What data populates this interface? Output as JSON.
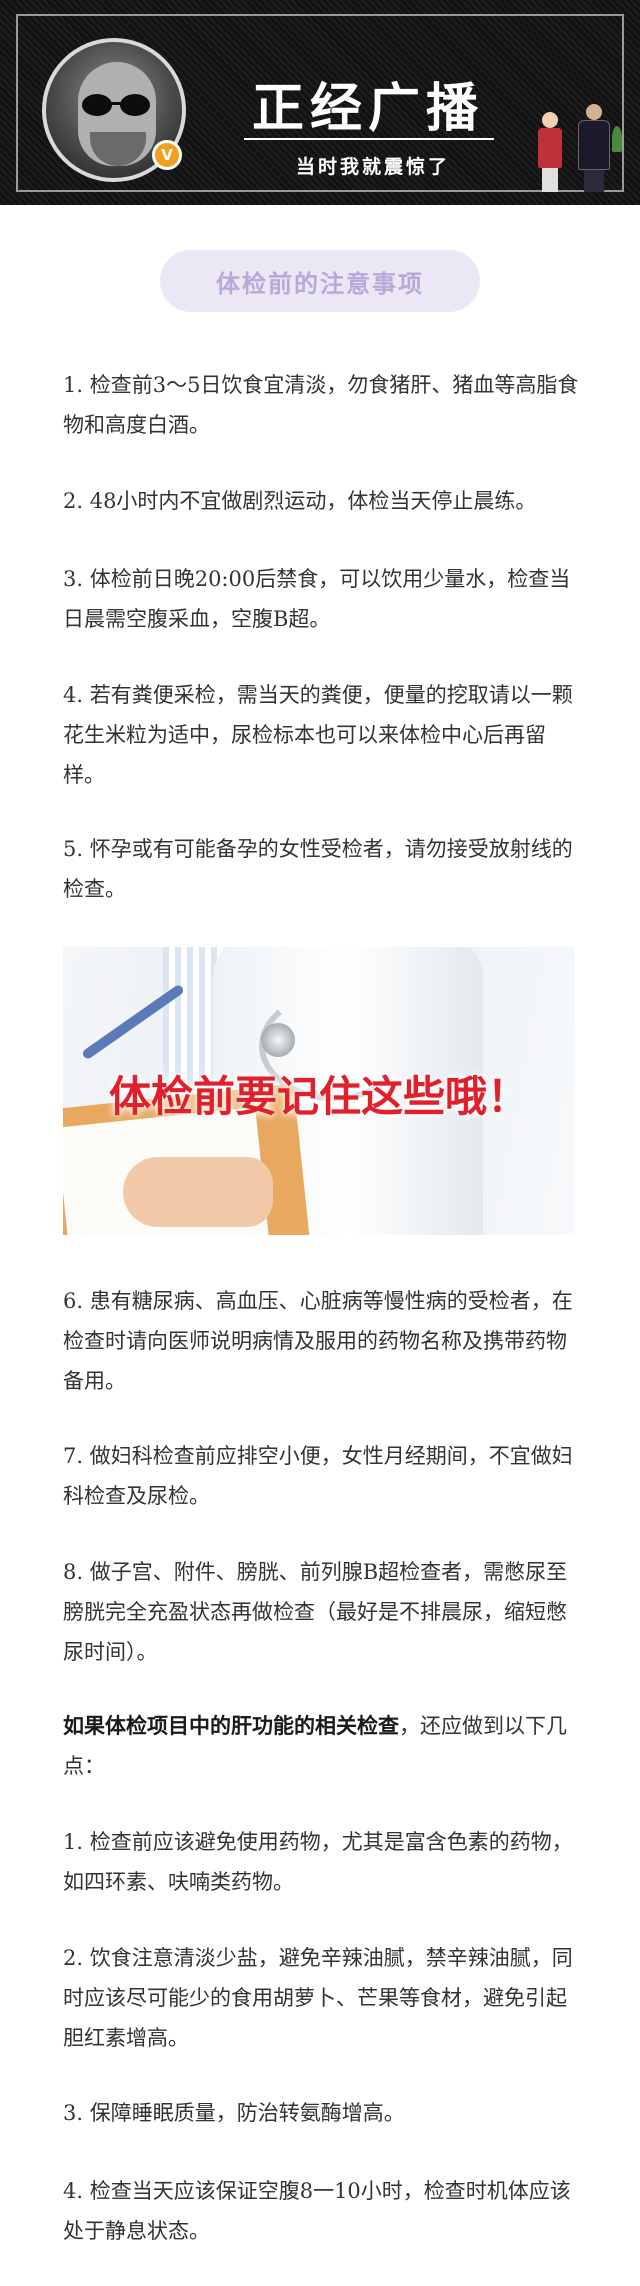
{
  "banner": {
    "title": "正经广播",
    "subtitle": "当时我就震惊了",
    "badge": "V"
  },
  "section_title": "体检前的注意事项",
  "items_a": [
    "1. 检查前3～5日饮食宜清淡，勿食猪肝、猪血等高脂食物和高度白酒。",
    "2. 48小时内不宜做剧烈运动，体检当天停止晨练。",
    "3. 体检前日晚20:00后禁食，可以饮用少量水，检查当日晨需空腹采血，空腹B超。",
    "4. 若有粪便采检，需当天的粪便，便量的挖取请以一颗花生米粒为适中，尿检标本也可以来体检中心后再留样。",
    "5. 怀孕或有可能备孕的女性受检者，请勿接受放射线的检查。"
  ],
  "image": {
    "overlay_text": "体检前要记住这些哦！"
  },
  "items_b": [
    "6. 患有糖尿病、高血压、心脏病等慢性病的受检者，在检查时请向医师说明病情及服用的药物名称及携带药物备用。",
    "7. 做妇科检查前应排空小便，女性月经期间，不宜做妇科检查及尿检。",
    "8. 做子宫、附件、膀胱、前列腺B超检查者，需憋尿至膀胱完全充盈状态再做检查（最好是不排晨尿，缩短憋尿时间）。"
  ],
  "liver_note": {
    "bold_text": "如果体检项目中的肝功能的相关检查",
    "rest_text": "，还应做到以下几点："
  },
  "items_c": [
    "1. 检查前应该避免使用药物，尤其是富含色素的药物，如四环素、呋喃类药物。",
    "2. 饮食注意清淡少盐，避免辛辣油腻，禁辛辣油腻，同时应该尽可能少的食用胡萝卜、芒果等食材，避免引起胆红素增高。",
    "3. 保障睡眠质量，防治转氨酶增高。",
    "4. 检查当天应该保证空腹8一10小时，检查时机体应该处于静息状态。"
  ]
}
